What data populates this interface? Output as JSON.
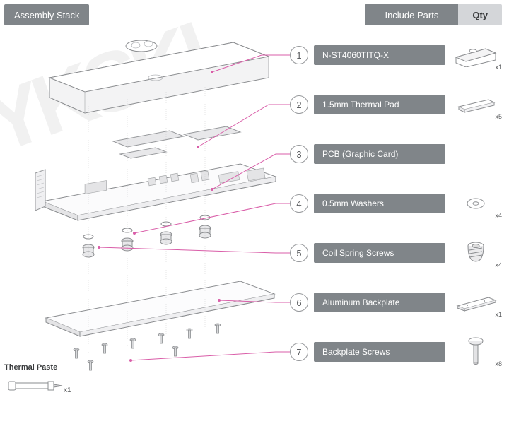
{
  "title": "Assembly Stack",
  "header": {
    "include": "Include Parts",
    "qty": "Qty"
  },
  "parts": [
    {
      "n": "1",
      "label": "N-ST4060TITQ-X",
      "qty": "x1",
      "icon": "waterblock"
    },
    {
      "n": "2",
      "label": "1.5mm Thermal Pad",
      "qty": "x5",
      "icon": "pad"
    },
    {
      "n": "3",
      "label": "PCB (Graphic Card)",
      "qty": "",
      "icon": ""
    },
    {
      "n": "4",
      "label": "0.5mm Washers",
      "qty": "x4",
      "icon": "washer"
    },
    {
      "n": "5",
      "label": "Coil Spring Screws",
      "qty": "x4",
      "icon": "spring"
    },
    {
      "n": "6",
      "label": "Aluminum Backplate",
      "qty": "x1",
      "icon": "plate"
    },
    {
      "n": "7",
      "label": "Backplate Screws",
      "qty": "x8",
      "icon": "screw"
    }
  ],
  "thermal_paste": {
    "label": "Thermal Paste",
    "qty": "x1"
  },
  "colors": {
    "bar": "#808589",
    "bar_alt": "#d4d6d9",
    "leader": "#d95da8",
    "outline": "#8a8c8f"
  },
  "leaders": [
    {
      "to_row": 0,
      "from": [
        290,
        62
      ],
      "mid": [
        360,
        62
      ]
    },
    {
      "to_row": 1,
      "from": [
        270,
        168
      ],
      "mid": [
        370,
        140
      ]
    },
    {
      "to_row": 2,
      "from": [
        290,
        228
      ],
      "mid": [
        380,
        210
      ]
    },
    {
      "to_row": 3,
      "from": [
        180,
        290
      ],
      "mid": [
        380,
        280
      ]
    },
    {
      "to_row": 4,
      "from": [
        130,
        310
      ],
      "mid": [
        380,
        350
      ]
    },
    {
      "to_row": 5,
      "from": [
        300,
        385
      ],
      "mid": [
        380,
        420
      ]
    },
    {
      "to_row": 6,
      "from": [
        175,
        470
      ],
      "mid": [
        380,
        490
      ]
    }
  ]
}
